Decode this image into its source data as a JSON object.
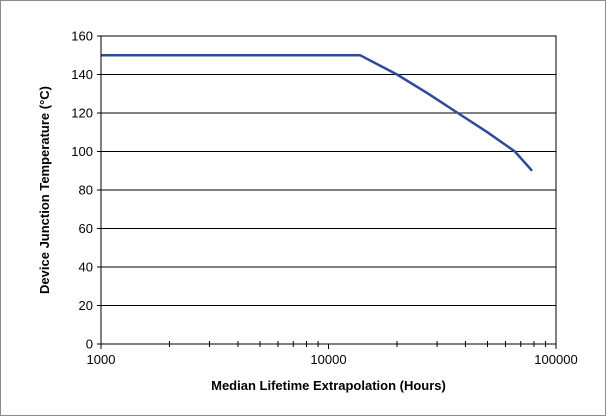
{
  "chart_data": {
    "type": "line",
    "title": "",
    "xlabel": "Median Lifetime Extrapolation (Hours)",
    "ylabel": "Device Junction Temperature (°C)",
    "xscale": "log",
    "xlim": [
      1000,
      100000
    ],
    "ylim": [
      0,
      160
    ],
    "xticks": [
      1000,
      10000,
      100000
    ],
    "xtick_labels": [
      "1000",
      "10000",
      "100000"
    ],
    "yticks": [
      0,
      20,
      40,
      60,
      80,
      100,
      120,
      140,
      160
    ],
    "ytick_labels": [
      "0",
      "20",
      "40",
      "60",
      "80",
      "100",
      "120",
      "140",
      "160"
    ],
    "grid": "horizontal",
    "legend": "none",
    "series": [
      {
        "color": "#2e4a9c",
        "x": [
          1000,
          13800,
          20000,
          27500,
          37000,
          50000,
          66000,
          78500
        ],
        "y": [
          150,
          150,
          140,
          130,
          120,
          110,
          100,
          90
        ]
      }
    ]
  }
}
